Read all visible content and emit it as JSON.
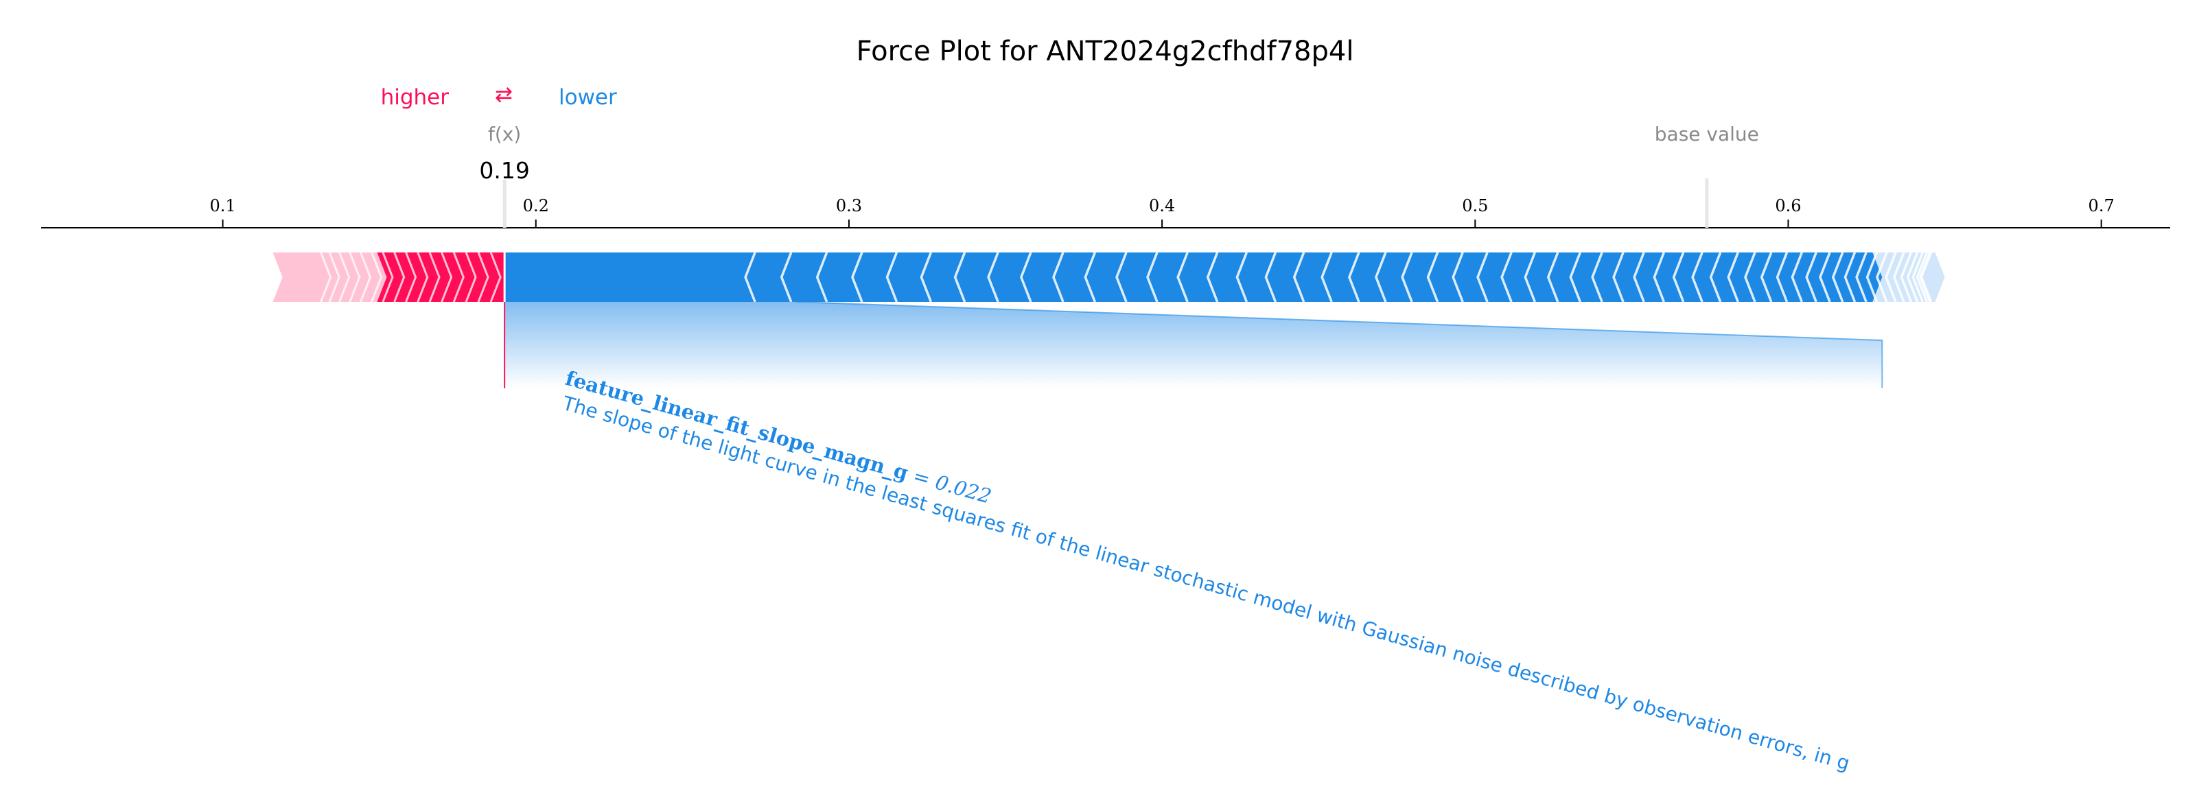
{
  "chart_data": {
    "type": "force",
    "title": "Force Plot for ANT2024g2cfhdf78p4l",
    "legend": {
      "higher_label": "higher",
      "arrows": "⇄",
      "lower_label": "lower"
    },
    "xlim": [
      0.042,
      0.722
    ],
    "ticks": [
      0.1,
      0.2,
      0.3,
      0.4,
      0.5,
      0.6,
      0.7
    ],
    "tick_labels": [
      "0.1",
      "0.2",
      "0.3",
      "0.4",
      "0.5",
      "0.6",
      "0.7"
    ],
    "fx": 0.19,
    "fx_label": "f(x)",
    "fx_text": "0.19",
    "base_value": 0.574,
    "base_value_label": "base value",
    "positive_segment": [
      0.116,
      0.19
    ],
    "negative_segment": [
      0.19,
      0.65
    ],
    "highlighted_feature": {
      "name": "feature_linear_fit_slope_magn_g",
      "value_text": " = 0.022",
      "value": 0.022,
      "contribution": [
        0.19,
        0.63
      ],
      "description": "The slope of the light curve in the least squares fit of the linear stochastic model with Gaussian noise described by observation errors, in g"
    },
    "colors": {
      "positive": "#ff0d57",
      "positive_light": "#ffc3d5",
      "negative": "#1e88e5",
      "negative_light": "#d1e6fa",
      "axis": "#000000",
      "marker": "#8a8a8a"
    }
  }
}
